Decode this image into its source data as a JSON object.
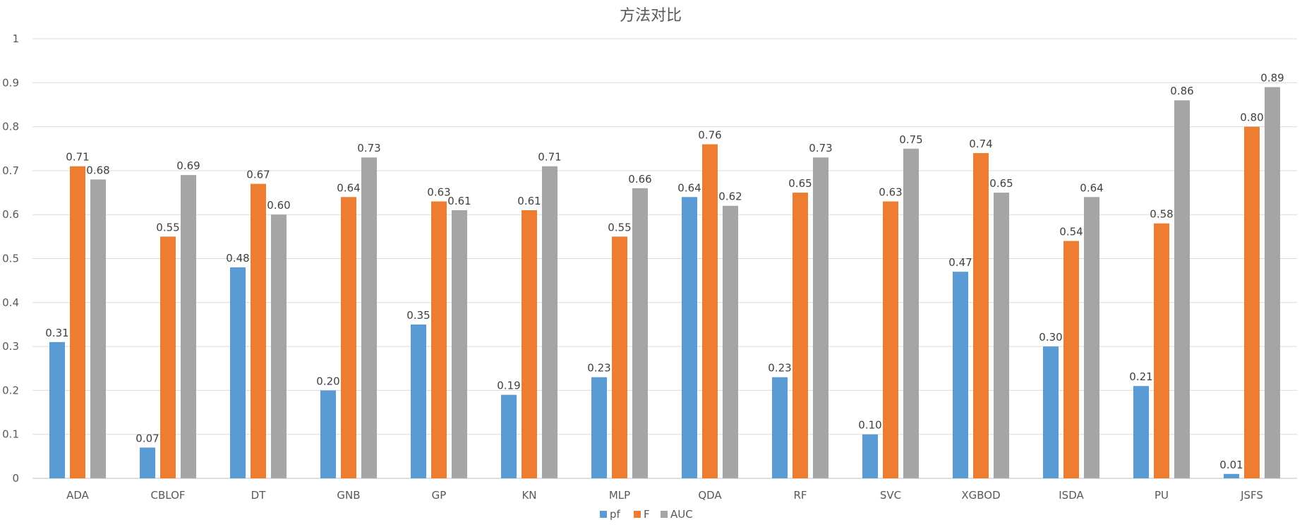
{
  "chart_data": {
    "type": "bar",
    "title": "方法对比",
    "xlabel": "",
    "ylabel": "",
    "ylim": [
      0,
      1
    ],
    "yticks": [
      "0",
      "0.1",
      "0.2",
      "0.3",
      "0.4",
      "0.5",
      "0.6",
      "0.7",
      "0.8",
      "0.9",
      "1"
    ],
    "grid": true,
    "legend_position": "bottom",
    "categories": [
      "ADA",
      "CBLOF",
      "DT",
      "GNB",
      "GP",
      "KN",
      "MLP",
      "QDA",
      "RF",
      "SVC",
      "XGBOD",
      "ISDA",
      "PU",
      "JSFS"
    ],
    "series": [
      {
        "name": "pf",
        "color": "#5B9BD5",
        "values": [
          0.31,
          0.07,
          0.48,
          0.2,
          0.35,
          0.19,
          0.23,
          0.64,
          0.23,
          0.1,
          0.47,
          0.3,
          0.21,
          0.01
        ],
        "labels": [
          "0.31",
          "0.07",
          "0.48",
          "0.20",
          "0.35",
          "0.19",
          "0.23",
          "0.64",
          "0.23",
          "0.10",
          "0.47",
          "0.30",
          "0.21",
          "0.01"
        ]
      },
      {
        "name": "F",
        "color": "#ED7D31",
        "values": [
          0.71,
          0.55,
          0.67,
          0.64,
          0.63,
          0.61,
          0.55,
          0.76,
          0.65,
          0.63,
          0.74,
          0.54,
          0.58,
          0.8
        ],
        "labels": [
          "0.71",
          "0.55",
          "0.67",
          "0.64",
          "0.63",
          "0.61",
          "0.55",
          "0.76",
          "0.65",
          "0.63",
          "0.74",
          "0.54",
          "0.58",
          "0.80"
        ]
      },
      {
        "name": "AUC",
        "color": "#A5A5A5",
        "values": [
          0.68,
          0.69,
          0.6,
          0.73,
          0.61,
          0.71,
          0.66,
          0.62,
          0.73,
          0.75,
          0.65,
          0.64,
          0.86,
          0.89
        ],
        "labels": [
          "0.68",
          "0.69",
          "0.60",
          "0.73",
          "0.61",
          "0.71",
          "0.66",
          "0.62",
          "0.73",
          "0.75",
          "0.65",
          "0.64",
          "0.86",
          "0.89"
        ]
      }
    ]
  }
}
